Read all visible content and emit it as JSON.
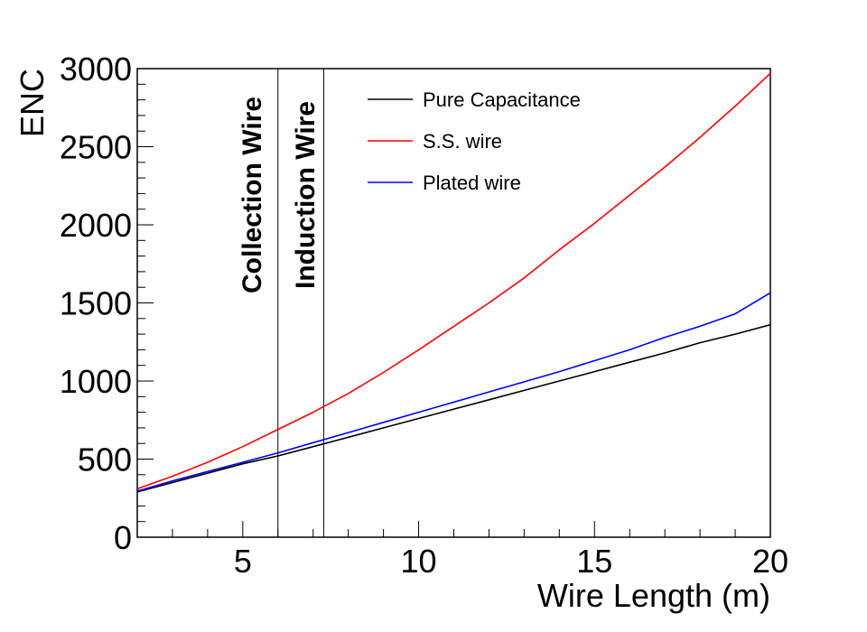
{
  "chart_data": {
    "type": "line",
    "title": "",
    "xlabel": "Wire Length (m)",
    "ylabel": "ENC",
    "xlim": [
      2,
      20
    ],
    "ylim": [
      0,
      3000
    ],
    "xticks": [
      5,
      10,
      15,
      20
    ],
    "yticks": [
      0,
      500,
      1000,
      1500,
      2000,
      2500,
      3000
    ],
    "grid": false,
    "legend_position": "top-right",
    "series": [
      {
        "name": "Pure Capacitance",
        "color": "#000000",
        "x": [
          2,
          3,
          4,
          5,
          6,
          7,
          8,
          9,
          10,
          11,
          12,
          13,
          14,
          15,
          16,
          17,
          18,
          19,
          20
        ],
        "y": [
          290,
          350,
          410,
          470,
          520,
          580,
          640,
          700,
          760,
          820,
          880,
          940,
          1000,
          1060,
          1120,
          1180,
          1245,
          1300,
          1360
        ]
      },
      {
        "name": "S.S. wire",
        "color": "#ff0000",
        "x": [
          2,
          3,
          4,
          5,
          6,
          7,
          8,
          9,
          10,
          11,
          12,
          13,
          14,
          15,
          16,
          17,
          18,
          19,
          20
        ],
        "y": [
          310,
          390,
          480,
          580,
          690,
          800,
          920,
          1055,
          1200,
          1350,
          1500,
          1660,
          1840,
          2010,
          2190,
          2370,
          2560,
          2760,
          2970
        ]
      },
      {
        "name": "Plated wire",
        "color": "#0000ff",
        "x": [
          2,
          3,
          4,
          5,
          6,
          7,
          8,
          9,
          10,
          11,
          12,
          13,
          14,
          15,
          16,
          17,
          18,
          19,
          20
        ],
        "y": [
          295,
          360,
          420,
          480,
          540,
          605,
          670,
          735,
          800,
          865,
          930,
          995,
          1060,
          1130,
          1200,
          1280,
          1350,
          1430,
          1565
        ]
      }
    ],
    "vlines": [
      {
        "x": 6.0,
        "label": "Collection  Wire"
      },
      {
        "x": 7.3,
        "label": "Induction  Wire"
      }
    ]
  }
}
